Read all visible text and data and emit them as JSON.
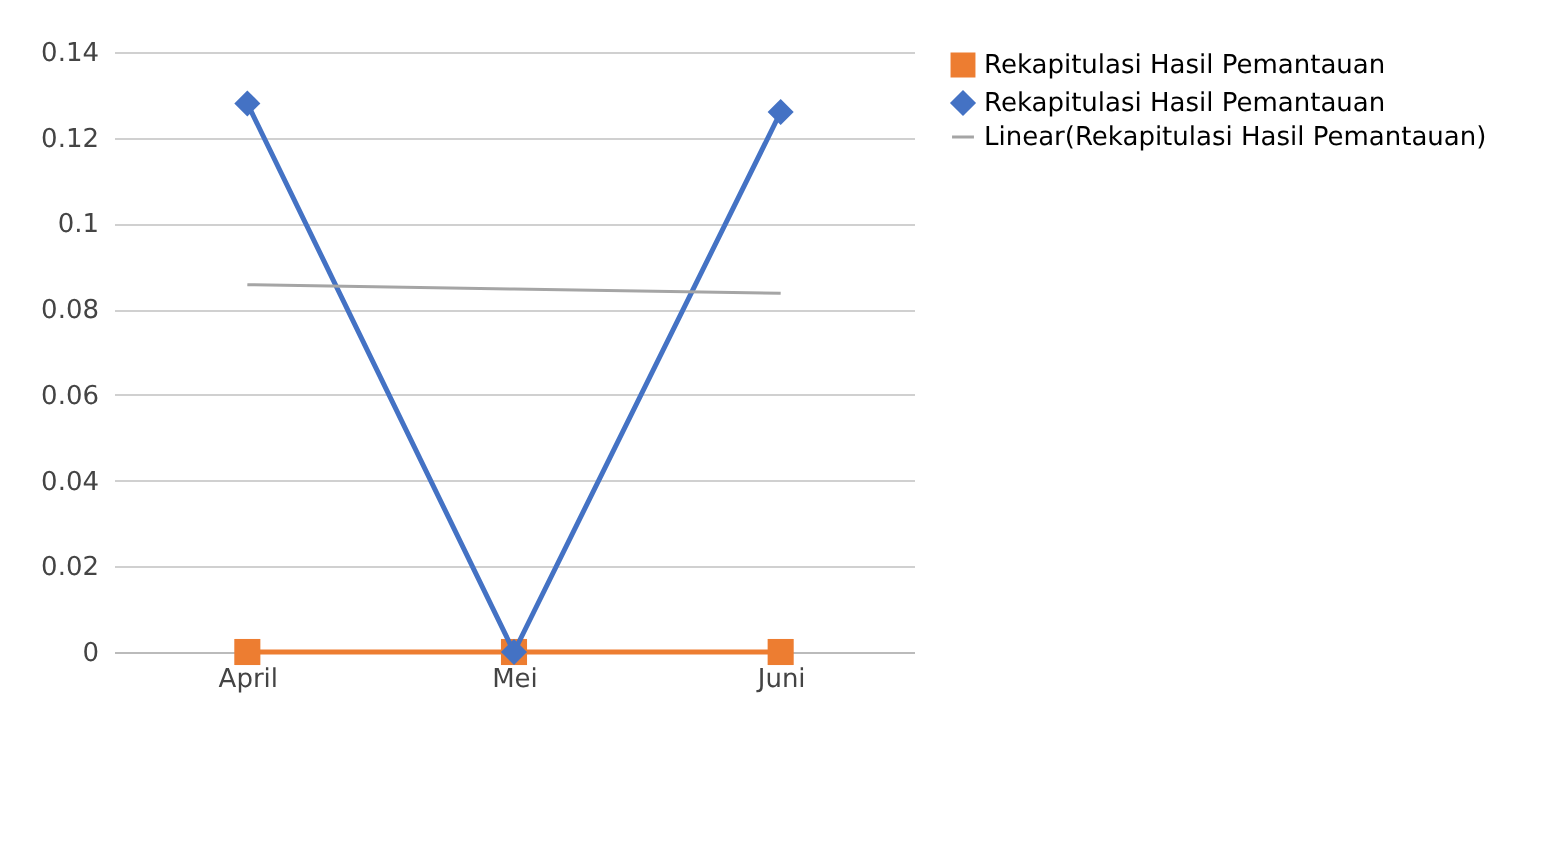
{
  "chart_data": {
    "type": "line",
    "categories": [
      "April",
      "Mei",
      "Juni"
    ],
    "series": [
      {
        "name": "Rekapitulasi Hasil Pemantauan",
        "color": "#ed7d31",
        "values": [
          0,
          0,
          0
        ],
        "marker": "square"
      },
      {
        "name": "Rekapitulasi Hasil Pemantauan",
        "color": "#4472c4",
        "values": [
          0.128,
          0,
          0.126
        ],
        "marker": "diamond"
      },
      {
        "name": "Linear(Rekapitulasi Hasil Pemantauan)",
        "color": "#a5a5a5",
        "values": [
          0.0857,
          0.0847,
          0.0837
        ],
        "marker": "none"
      }
    ],
    "ylim": [
      0,
      0.14
    ],
    "yticks": [
      0,
      0.02,
      0.04,
      0.06,
      0.08,
      {
        "value": 0.1,
        "label": "0.1"
      },
      0.12,
      0.14
    ],
    "grid": "y",
    "legend": "right"
  }
}
